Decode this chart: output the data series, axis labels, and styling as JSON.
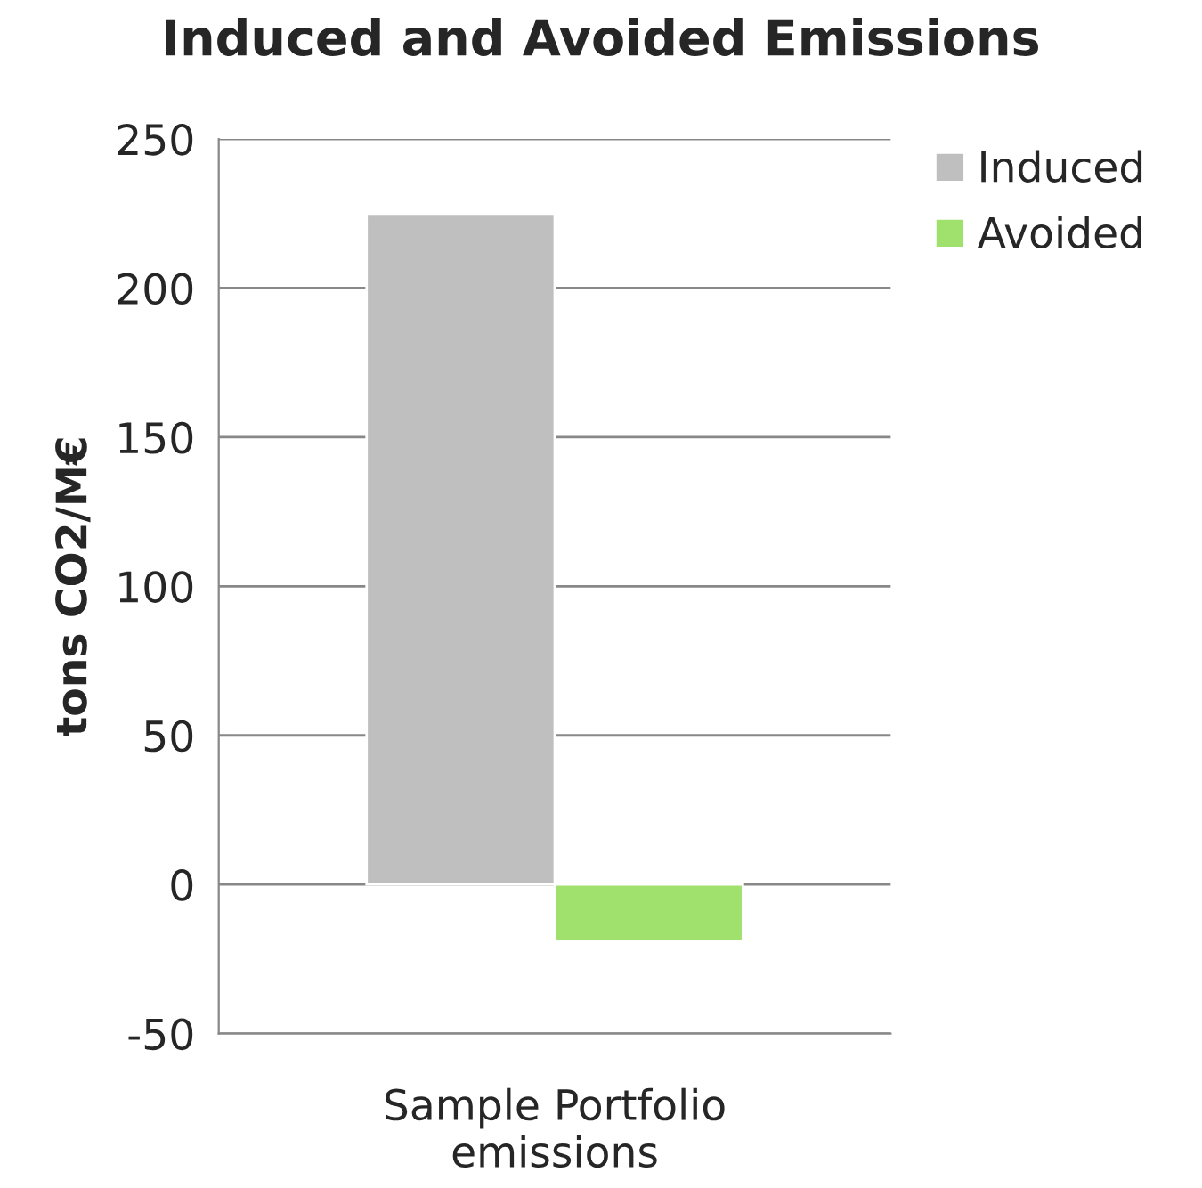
{
  "chart_data": {
    "type": "bar",
    "title": "Induced and Avoided Emissions",
    "ylabel": "tons CO2/M€",
    "categories": [
      "Sample Portfolio emissions"
    ],
    "series": [
      {
        "name": "Induced",
        "color": "#bfbfbf",
        "values": [
          225
        ]
      },
      {
        "name": "Avoided",
        "color": "#a0e06c",
        "values": [
          -19
        ]
      }
    ],
    "ylim": [
      -50,
      250
    ],
    "yticks": [
      -50,
      0,
      50,
      100,
      150,
      200,
      250
    ],
    "grid": "y",
    "legend": "top right"
  }
}
